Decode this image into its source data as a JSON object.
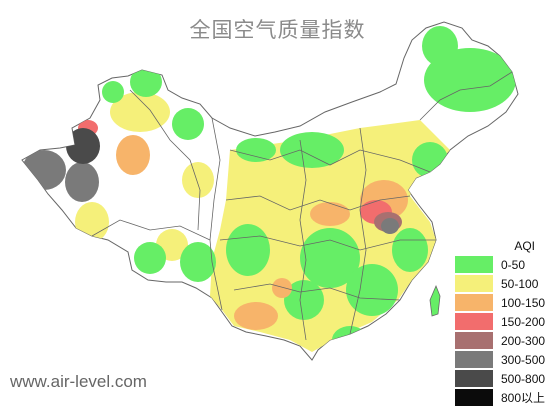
{
  "title": "全国空气质量指数",
  "legend": {
    "title": "AQI",
    "items": [
      {
        "label": "0-50",
        "color": "#66ee66"
      },
      {
        "label": "50-100",
        "color": "#f5f07a"
      },
      {
        "label": "100-150",
        "color": "#f7b46a"
      },
      {
        "label": "150-200",
        "color": "#f26d6d"
      },
      {
        "label": "200-300",
        "color": "#a87070"
      },
      {
        "label": "300-500",
        "color": "#7a7a7a"
      },
      {
        "label": "500-800",
        "color": "#4a4a4a"
      },
      {
        "label": "800以上",
        "color": "#0b0b0b"
      }
    ]
  },
  "source": "www.air-level.com",
  "colors": {
    "background_region": "#f6f27e",
    "border": "#555555",
    "good": "#66ee66",
    "moderate": "#f5f07a",
    "sensitive": "#f7b46a",
    "unhealthy": "#f26d6d",
    "very_unhealthy": "#a87070",
    "hazardous": "#7a7a7a",
    "severe": "#4a4a4a"
  }
}
